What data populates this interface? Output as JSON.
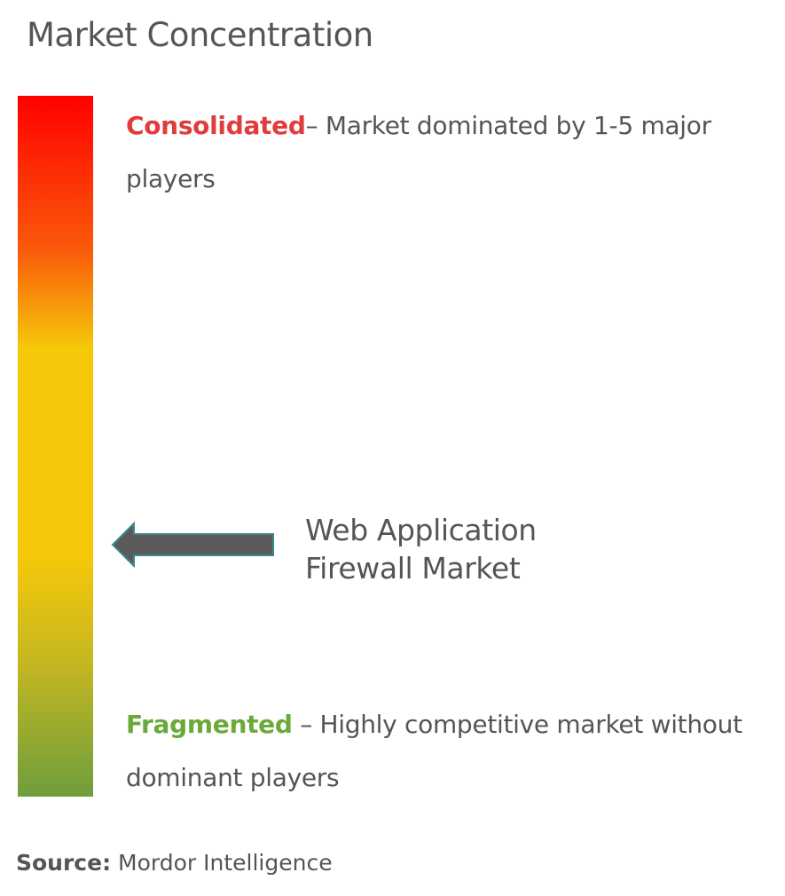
{
  "title": "Market Concentration",
  "scale": {
    "top_color": "#ff0000",
    "middle_color": "#f5c80a",
    "bottom_color": "#6e9e3c"
  },
  "consolidated": {
    "label": "Consolidated",
    "description": "– Market dominated by 1-5 major players",
    "color": "#e03c3c"
  },
  "fragmented": {
    "label": "Fragmented",
    "description": " – Highly competitive market without dominant players",
    "color": "#6aaa3a"
  },
  "market": {
    "line1": "Web Application",
    "line2": "Firewall Market",
    "arrow_color": "#5a5a5a",
    "arrow_outline": "#3a8a8a"
  },
  "source": {
    "label": "Source:",
    "value": " Mordor Intelligence"
  }
}
